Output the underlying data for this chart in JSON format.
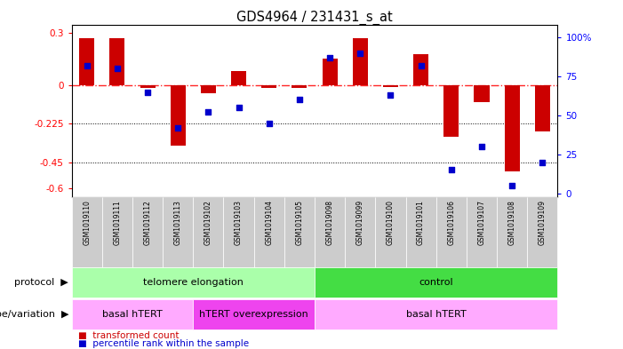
{
  "title": "GDS4964 / 231431_s_at",
  "samples": [
    "GSM1019110",
    "GSM1019111",
    "GSM1019112",
    "GSM1019113",
    "GSM1019102",
    "GSM1019103",
    "GSM1019104",
    "GSM1019105",
    "GSM1019098",
    "GSM1019099",
    "GSM1019100",
    "GSM1019101",
    "GSM1019106",
    "GSM1019107",
    "GSM1019108",
    "GSM1019109"
  ],
  "transformed_count": [
    0.27,
    0.27,
    -0.02,
    -0.35,
    -0.05,
    0.08,
    -0.02,
    -0.02,
    0.15,
    0.27,
    -0.01,
    0.18,
    -0.3,
    -0.1,
    -0.5,
    -0.27
  ],
  "percentile_rank": [
    82,
    80,
    65,
    42,
    52,
    55,
    45,
    60,
    87,
    90,
    63,
    82,
    15,
    30,
    5,
    20
  ],
  "bar_color": "#cc0000",
  "dot_color": "#0000cc",
  "ylim_left": [
    -0.65,
    0.35
  ],
  "ylim_right": [
    -2.5,
    108.3
  ],
  "yticks_left": [
    0.3,
    0.0,
    -0.225,
    -0.45,
    -0.6
  ],
  "ytick_labels_left": [
    "0.3",
    "0",
    "-0.225",
    "-0.45",
    "-0.6"
  ],
  "yticks_right": [
    100,
    75,
    50,
    25,
    0
  ],
  "ytick_labels_right": [
    "100%",
    "75",
    "50",
    "25",
    "0"
  ],
  "hline_y": 0.0,
  "dotted_lines": [
    -0.225,
    -0.45
  ],
  "protocol_groups": [
    {
      "label": "telomere elongation",
      "start": 0,
      "end": 7,
      "color": "#aaffaa"
    },
    {
      "label": "control",
      "start": 8,
      "end": 15,
      "color": "#44dd44"
    }
  ],
  "genotype_groups": [
    {
      "label": "basal hTERT",
      "start": 0,
      "end": 3,
      "color": "#ffaaff"
    },
    {
      "label": "hTERT overexpression",
      "start": 4,
      "end": 7,
      "color": "#ee44ee"
    },
    {
      "label": "basal hTERT",
      "start": 8,
      "end": 15,
      "color": "#ffaaff"
    }
  ],
  "sample_bg_color": "#cccccc",
  "legend_red_label": "transformed count",
  "legend_blue_label": "percentile rank within the sample",
  "legend_red_color": "#cc0000",
  "legend_blue_color": "#0000cc"
}
